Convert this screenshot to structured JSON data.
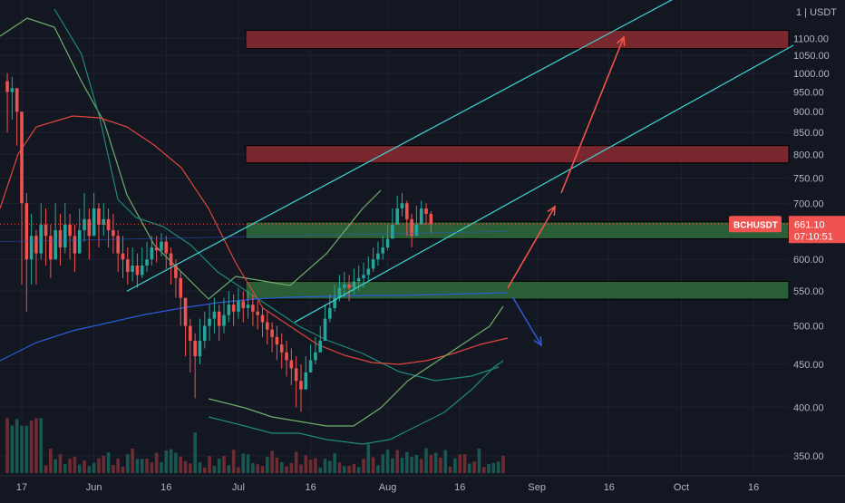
{
  "chart": {
    "currency_label": "USDT",
    "currency_prefix": "1",
    "symbol_badge": "BCHUSDT",
    "last_price": "661.10",
    "countdown": "07:10:51",
    "colors": {
      "background": "#131722",
      "grid": "#1e2230",
      "candle_up": "#26a69a",
      "candle_down": "#ef5350",
      "resistance_zone": "#8b2a30",
      "support_zone": "#2f6b3a",
      "channel_line": "#3fd6d6",
      "forecast_up_arrow": "#f0554a",
      "forecast_down_arrow": "#2f57c8",
      "bollinger_green": "#6fae6a",
      "bollinger_teal": "#1f8a7a",
      "ma_red": "#e0453e",
      "ma_blue": "#2a5bd7",
      "price_badge": "#ef5350"
    }
  },
  "chart_data": {
    "type": "candlestick",
    "title": "",
    "xlabel": "",
    "ylabel": "",
    "ylim": [
      320,
      1180
    ],
    "y_scale": "log",
    "grid": true,
    "y_ticks": [
      350,
      400,
      450,
      500,
      550,
      600,
      650,
      700,
      750,
      800,
      850,
      900,
      950,
      1000,
      1050,
      1100
    ],
    "y_tick_labels": [
      "350.00",
      "400.00",
      "450.00",
      "500.00",
      "550.00",
      "600.00",
      "650.00",
      "700.00",
      "750.00",
      "800.00",
      "850.00",
      "900.00",
      "950.00",
      "1000.00",
      "1050.00",
      "1100.00"
    ],
    "x_tick_labels": [
      "17",
      "Jun",
      "16",
      "Jul",
      "16",
      "Aug",
      "16",
      "Sep",
      "16",
      "Oct",
      "16"
    ],
    "zones": [
      {
        "kind": "resistance",
        "low": 1070,
        "high": 1125
      },
      {
        "kind": "resistance",
        "low": 782,
        "high": 820
      },
      {
        "kind": "support",
        "low": 635,
        "high": 665
      },
      {
        "kind": "support",
        "low": 538,
        "high": 565
      }
    ],
    "current_price": 661.1
  }
}
